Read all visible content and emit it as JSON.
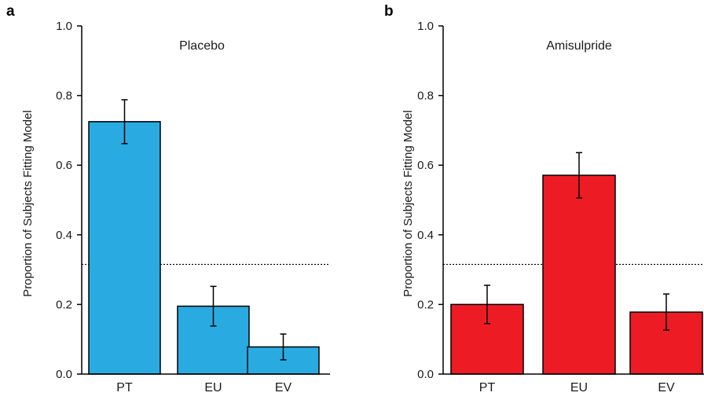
{
  "chart_data": [
    {
      "panel": "a",
      "type": "bar",
      "title": "Placebo",
      "ylabel": "Proportion of Subjects Fitting Model",
      "xlabel": "",
      "categories": [
        "PT",
        "EU",
        "EV"
      ],
      "values": [
        0.725,
        0.195,
        0.078
      ],
      "error": [
        0.063,
        0.057,
        0.037
      ],
      "reference_line": 0.315,
      "ylim": [
        0.0,
        1.0
      ],
      "yticks": [
        "0.0",
        "0.2",
        "0.4",
        "0.6",
        "0.8",
        "1.0"
      ],
      "bar_color": "#29abe2"
    },
    {
      "panel": "b",
      "type": "bar",
      "title": "Amisulpride",
      "ylabel": "Proportion of Subjects Fitting Model",
      "xlabel": "",
      "categories": [
        "PT",
        "EU",
        "EV"
      ],
      "values": [
        0.2,
        0.571,
        0.178
      ],
      "error": [
        0.055,
        0.065,
        0.052
      ],
      "reference_line": 0.315,
      "ylim": [
        0.0,
        1.0
      ],
      "yticks": [
        "0.0",
        "0.2",
        "0.4",
        "0.6",
        "0.8",
        "1.0"
      ],
      "bar_color": "#ed1c24"
    }
  ]
}
